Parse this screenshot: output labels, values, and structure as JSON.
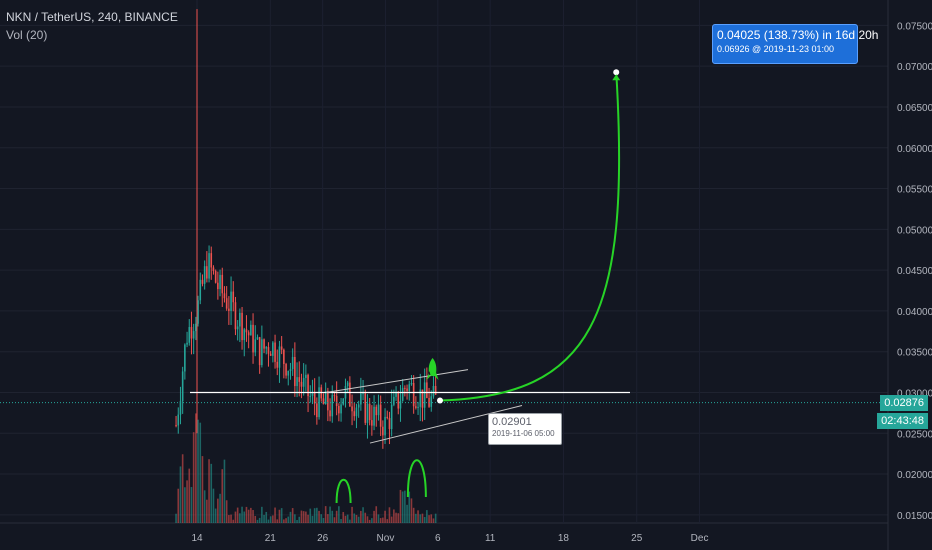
{
  "header": {
    "symbol_line": "NKN / TetherUS, 240, BINANCE",
    "indicator": "Vol (20)"
  },
  "price_axis": {
    "current_price": "0.02876",
    "countdown": "02:43:48"
  },
  "measure_tooltip": {
    "line1": "0.04025 (138.73%) in 16d 20h",
    "line2": "0.06926 @ 2019-11-23  01:00"
  },
  "point_tooltip": {
    "price": "0.02901",
    "date": "2019-11-06 05:00"
  },
  "colors": {
    "background": "#131722",
    "up": "#26a69a",
    "down": "#ef5350",
    "projection": "#27d427",
    "current_line": "#26a69a"
  },
  "chart_data": {
    "type": "candlestick",
    "ylim": [
      0.014,
      0.0775
    ],
    "y_ticks": [
      "0.07500",
      "0.07000",
      "0.06500",
      "0.06000",
      "0.05500",
      "0.05000",
      "0.04500",
      "0.04000",
      "0.03500",
      "0.03000",
      "0.02500",
      "0.02000",
      "0.01500"
    ],
    "x_ticks": [
      "14",
      "21",
      "26",
      "Nov",
      "6",
      "11",
      "18",
      "25",
      "Dec"
    ],
    "price_path": [
      {
        "date": "2019-10-12",
        "price": 0.026
      },
      {
        "date": "2019-10-13",
        "price": 0.037
      },
      {
        "date": "2019-10-14",
        "price": 0.04
      },
      {
        "date": "2019-10-15",
        "price": 0.046
      },
      {
        "date": "2019-10-16",
        "price": 0.043
      },
      {
        "date": "2019-10-18",
        "price": 0.039
      },
      {
        "date": "2019-10-20",
        "price": 0.035
      },
      {
        "date": "2019-10-21",
        "price": 0.036
      },
      {
        "date": "2019-10-23",
        "price": 0.033
      },
      {
        "date": "2019-10-25",
        "price": 0.029
      },
      {
        "date": "2019-10-27",
        "price": 0.028
      },
      {
        "date": "2019-10-28",
        "price": 0.03
      },
      {
        "date": "2019-10-30",
        "price": 0.028
      },
      {
        "date": "2019-11-01",
        "price": 0.026
      },
      {
        "date": "2019-11-03",
        "price": 0.031
      },
      {
        "date": "2019-11-04",
        "price": 0.03
      },
      {
        "date": "2019-11-05",
        "price": 0.029
      },
      {
        "date": "2019-11-06",
        "price": 0.029
      }
    ],
    "spike_high": 0.077,
    "horizontal_level": 0.03,
    "current_price": 0.02876,
    "projection": {
      "from_price": 0.02901,
      "to_price": 0.06926,
      "from": "2019-11-06 05:00",
      "to": "2019-11-23 01:00"
    }
  }
}
